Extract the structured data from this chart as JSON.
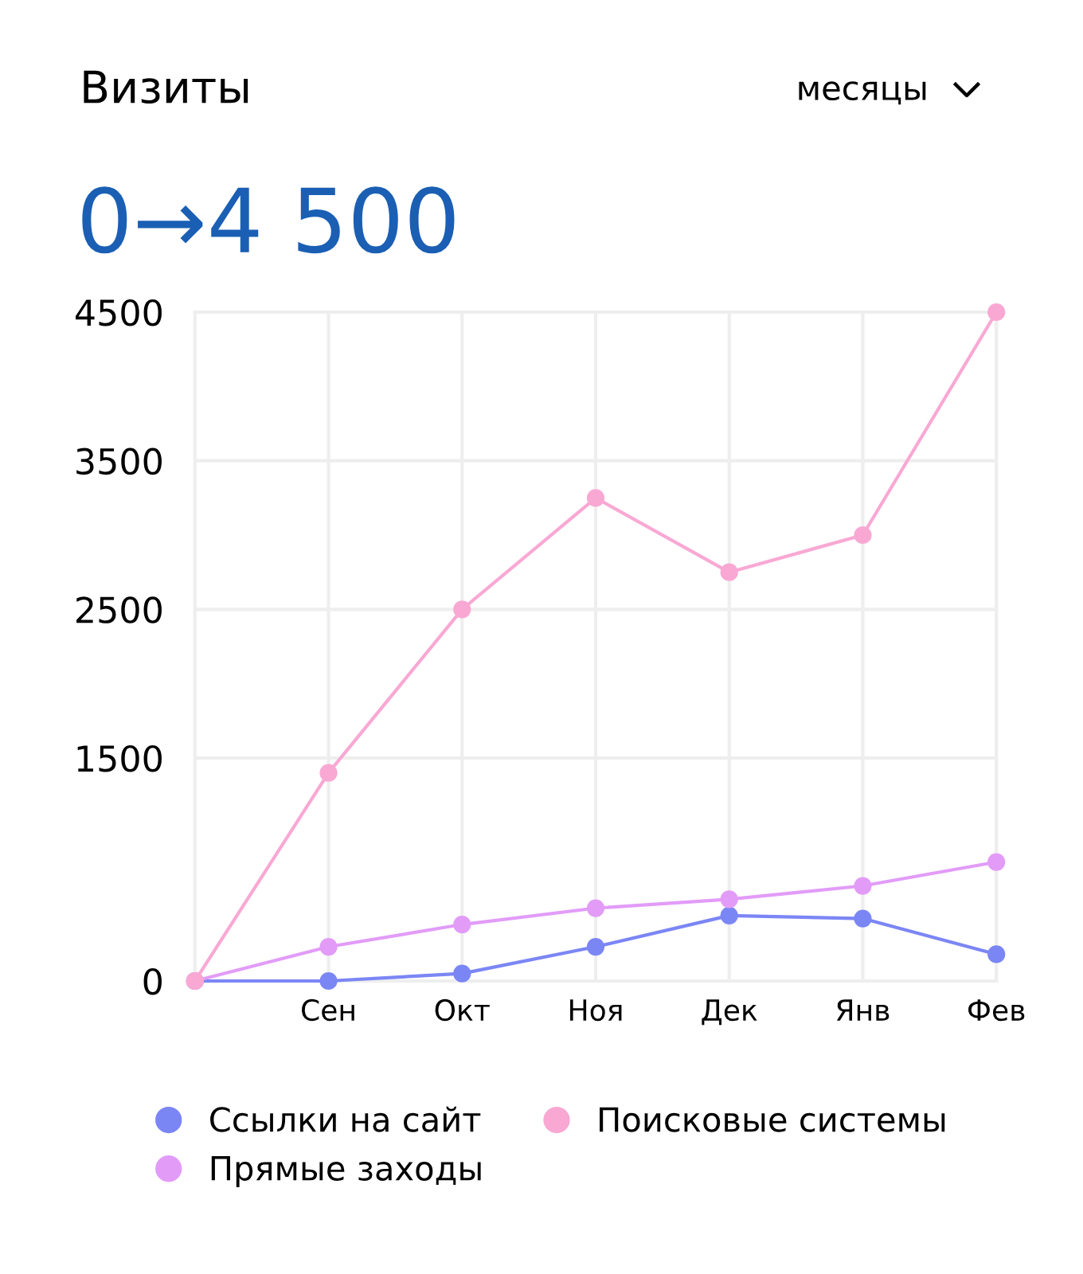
{
  "chart_data": {
    "type": "line",
    "title": "Визиты",
    "subtitle": "0→4 500",
    "annotations": [
      "месяцы"
    ],
    "categories": [
      null,
      "Сен",
      "Окт",
      "Ноя",
      "Дек",
      "Янв",
      "Фев"
    ],
    "ylim": [
      0,
      4500
    ],
    "yticks": [
      0,
      1500,
      2500,
      3500,
      4500
    ],
    "grid": true,
    "marker": "circle",
    "line_style": "solid",
    "legend": "bottom",
    "series": [
      {
        "name": "Ссылки на сайт",
        "color": "#7b86f5",
        "values": [
          0,
          0,
          50,
          230,
          440,
          420,
          180
        ]
      },
      {
        "name": "Прямые заходы",
        "color": "#e29cf8",
        "values": [
          0,
          230,
          380,
          490,
          550,
          640,
          800
        ]
      },
      {
        "name": "Поисковые системы",
        "color": "#f9a8d4",
        "values": [
          0,
          1400,
          2500,
          3250,
          2750,
          3000,
          4500
        ]
      }
    ]
  }
}
